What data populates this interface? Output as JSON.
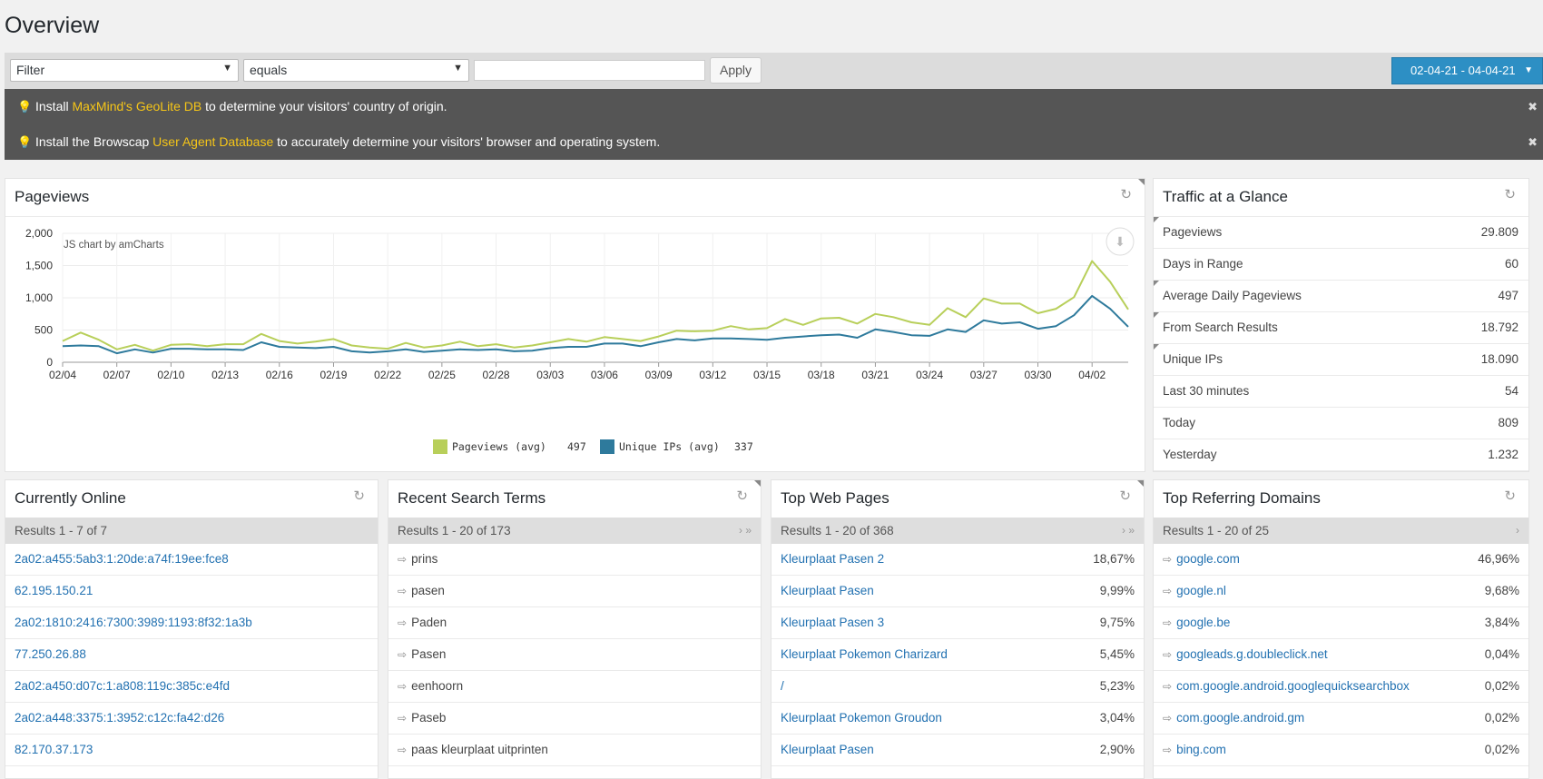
{
  "page": {
    "title": "Overview"
  },
  "filterbar": {
    "filter_select": "Filter",
    "operator_select": "equals",
    "value_input": "",
    "apply_label": "Apply",
    "date_range": "02-04-21 - 04-04-21"
  },
  "notices": [
    {
      "prefix": "Install ",
      "link": "MaxMind's GeoLite DB",
      "suffix": " to determine your visitors' country of origin."
    },
    {
      "prefix": "Install the Browscap ",
      "link": "User Agent Database",
      "suffix": " to accurately determine your visitors' browser and operating system."
    }
  ],
  "pageviews": {
    "title": "Pageviews",
    "credit": "JS chart by amCharts",
    "legend": [
      {
        "label": "Pageviews (avg)",
        "value": "497",
        "color": "#b8cf5a"
      },
      {
        "label": "Unique IPs (avg)",
        "value": "337",
        "color": "#2e7a9c"
      }
    ]
  },
  "chart_data": {
    "type": "line",
    "title": "Pageviews",
    "ylim": [
      0,
      2000
    ],
    "yticks": [
      "0",
      "500",
      "1,000",
      "1,500",
      "2,000"
    ],
    "xtick_labels": [
      "02/04",
      "02/07",
      "02/10",
      "02/13",
      "02/16",
      "02/19",
      "02/22",
      "02/25",
      "02/28",
      "03/03",
      "03/06",
      "03/09",
      "03/12",
      "03/15",
      "03/18",
      "03/21",
      "03/24",
      "03/27",
      "03/30",
      "04/02"
    ],
    "x": [
      "02/04",
      "02/05",
      "02/06",
      "02/07",
      "02/08",
      "02/09",
      "02/10",
      "02/11",
      "02/12",
      "02/13",
      "02/14",
      "02/15",
      "02/16",
      "02/17",
      "02/18",
      "02/19",
      "02/20",
      "02/21",
      "02/22",
      "02/23",
      "02/24",
      "02/25",
      "02/26",
      "02/27",
      "02/28",
      "03/01",
      "03/02",
      "03/03",
      "03/04",
      "03/05",
      "03/06",
      "03/07",
      "03/08",
      "03/09",
      "03/10",
      "03/11",
      "03/12",
      "03/13",
      "03/14",
      "03/15",
      "03/16",
      "03/17",
      "03/18",
      "03/19",
      "03/20",
      "03/21",
      "03/22",
      "03/23",
      "03/24",
      "03/25",
      "03/26",
      "03/27",
      "03/28",
      "03/29",
      "03/30",
      "03/31",
      "04/01",
      "04/02",
      "04/03",
      "04/04"
    ],
    "series": [
      {
        "name": "Pageviews (avg)",
        "color": "#b8cf5a",
        "values": [
          330,
          460,
          350,
          200,
          270,
          180,
          270,
          280,
          250,
          280,
          280,
          440,
          330,
          290,
          320,
          360,
          260,
          230,
          210,
          300,
          230,
          260,
          320,
          250,
          280,
          230,
          260,
          310,
          360,
          320,
          390,
          360,
          330,
          400,
          490,
          480,
          490,
          560,
          510,
          530,
          670,
          580,
          680,
          690,
          600,
          750,
          700,
          620,
          580,
          840,
          700,
          990,
          910,
          910,
          760,
          830,
          1010,
          1570,
          1250,
          820
        ]
      },
      {
        "name": "Unique IPs (avg)",
        "color": "#2e7a9c",
        "values": [
          250,
          260,
          250,
          140,
          200,
          150,
          210,
          210,
          200,
          200,
          190,
          310,
          240,
          230,
          220,
          240,
          170,
          150,
          170,
          200,
          160,
          180,
          200,
          190,
          200,
          170,
          180,
          220,
          240,
          240,
          290,
          290,
          250,
          310,
          360,
          340,
          370,
          370,
          360,
          350,
          380,
          400,
          420,
          430,
          380,
          510,
          470,
          420,
          410,
          510,
          470,
          650,
          600,
          620,
          520,
          560,
          730,
          1030,
          830,
          550
        ]
      }
    ]
  },
  "glance": {
    "title": "Traffic at a Glance",
    "rows": [
      {
        "label": "Pageviews",
        "value": "29.809"
      },
      {
        "label": "Days in Range",
        "value": "60"
      },
      {
        "label": "Average Daily Pageviews",
        "value": "497"
      },
      {
        "label": "From Search Results",
        "value": "18.792"
      },
      {
        "label": "Unique IPs",
        "value": "18.090"
      },
      {
        "label": "Last 30 minutes",
        "value": "54"
      },
      {
        "label": "Today",
        "value": "809"
      },
      {
        "label": "Yesterday",
        "value": "1.232"
      }
    ]
  },
  "online": {
    "title": "Currently Online",
    "results": "Results 1 - 7 of 7",
    "items": [
      "2a02:a455:5ab3:1:20de:a74f:19ee:fce8",
      "62.195.150.21",
      "2a02:1810:2416:7300:3989:1193:8f32:1a3b",
      "77.250.26.88",
      "2a02:a450:d07c:1:a808:119c:385c:e4fd",
      "2a02:a448:3375:1:3952:c12c:fa42:d26",
      "82.170.37.173"
    ]
  },
  "search": {
    "title": "Recent Search Terms",
    "results": "Results 1 - 20 of 173",
    "pager": "› »",
    "items": [
      "prins",
      "pasen",
      "Paden",
      "Pasen",
      "eenhoorn",
      "Paseb",
      "paas kleurplaat uitprinten"
    ]
  },
  "pages": {
    "title": "Top Web Pages",
    "results": "Results 1 - 20 of 368",
    "pager": "› »",
    "items": [
      {
        "label": "Kleurplaat Pasen 2",
        "pct": "18,67%"
      },
      {
        "label": "Kleurplaat Pasen",
        "pct": "9,99%"
      },
      {
        "label": "Kleurplaat Pasen 3",
        "pct": "9,75%"
      },
      {
        "label": "Kleurplaat Pokemon Charizard",
        "pct": "5,45%"
      },
      {
        "label": "/",
        "pct": "5,23%"
      },
      {
        "label": "Kleurplaat Pokemon Groudon",
        "pct": "3,04%"
      },
      {
        "label": "Kleurplaat Pasen",
        "pct": "2,90%"
      }
    ]
  },
  "domains": {
    "title": "Top Referring Domains",
    "results": "Results 1 - 20 of 25",
    "pager": "›",
    "items": [
      {
        "label": "google.com",
        "pct": "46,96%"
      },
      {
        "label": "google.nl",
        "pct": "9,68%"
      },
      {
        "label": "google.be",
        "pct": "3,84%"
      },
      {
        "label": "googleads.g.doubleclick.net",
        "pct": "0,04%"
      },
      {
        "label": "com.google.android.googlequicksearchbox",
        "pct": "0,02%"
      },
      {
        "label": "com.google.android.gm",
        "pct": "0,02%"
      },
      {
        "label": "bing.com",
        "pct": "0,02%"
      }
    ]
  }
}
